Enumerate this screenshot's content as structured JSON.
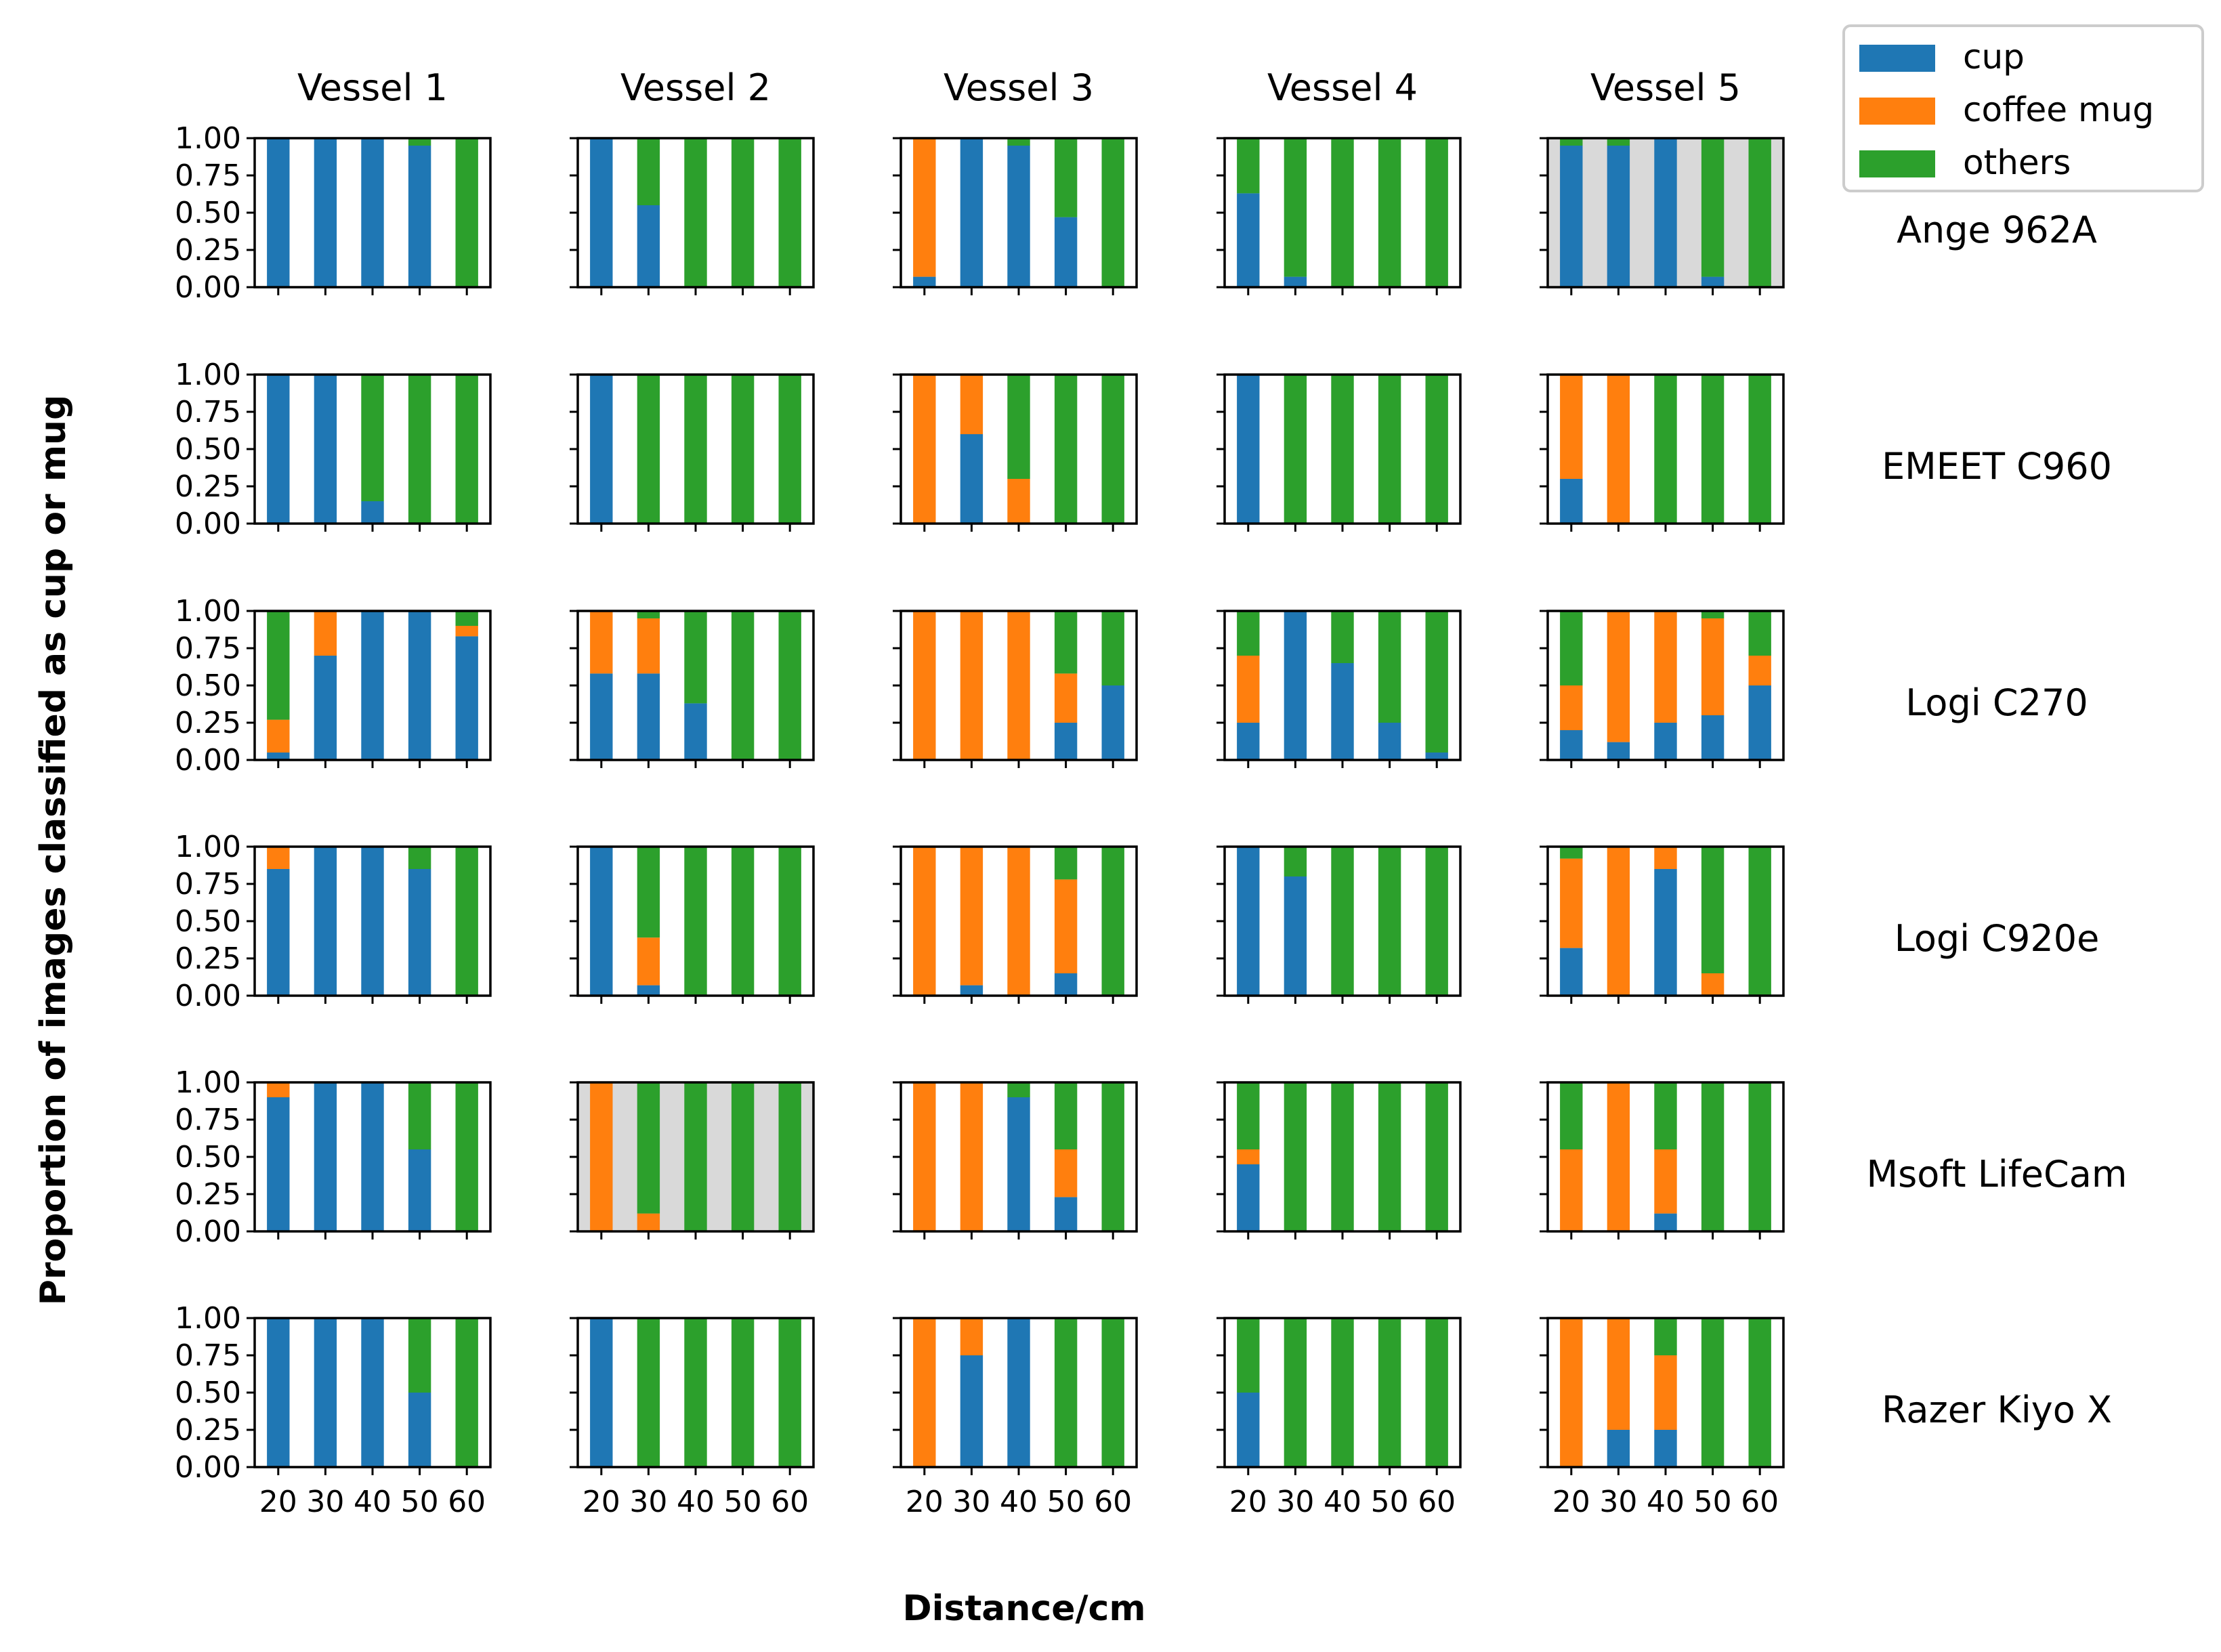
{
  "chart_data": {
    "type": "bar",
    "stacked": true,
    "grid": false,
    "ylabel": "Proportion of images classified as cup or mug",
    "xlabel": "Distance/cm",
    "categories": [
      "20",
      "30",
      "40",
      "50",
      "60"
    ],
    "yticks": [
      "0.00",
      "0.25",
      "0.50",
      "0.75",
      "1.00"
    ],
    "ylim": [
      0,
      1
    ],
    "legend": {
      "placement": "top-right",
      "entries": [
        {
          "name": "cup",
          "color": "#1f77b4"
        },
        {
          "name": "coffee mug",
          "color": "#ff7f0e"
        },
        {
          "name": "others",
          "color": "#2ca02c"
        }
      ]
    },
    "columns": [
      "Vessel 1",
      "Vessel 2",
      "Vessel 3",
      "Vessel 4",
      "Vessel 5"
    ],
    "rows": [
      "Ange 962A",
      "EMEET C960",
      "Logi C270",
      "Logi C920e",
      "Msoft LifeCam",
      "Razer Kiyo X"
    ],
    "highlighted_panels": [
      {
        "row": "Ange 962A",
        "column": "Vessel 5",
        "background": "#d9d9d9"
      },
      {
        "row": "Msoft LifeCam",
        "column": "Vessel 2",
        "background": "#d9d9d9"
      }
    ],
    "panels": [
      [
        {
          "cup": [
            1.0,
            1.0,
            1.0,
            0.95,
            0.0
          ],
          "coffee_mug": [
            0.0,
            0.0,
            0.0,
            0.0,
            0.0
          ],
          "others": [
            0.0,
            0.0,
            0.0,
            0.05,
            1.0
          ]
        },
        {
          "cup": [
            1.0,
            0.55,
            0.0,
            0.0,
            0.0
          ],
          "coffee_mug": [
            0.0,
            0.0,
            0.0,
            0.0,
            0.0
          ],
          "others": [
            0.0,
            0.45,
            1.0,
            1.0,
            1.0
          ]
        },
        {
          "cup": [
            0.07,
            1.0,
            0.95,
            0.47,
            0.0
          ],
          "coffee_mug": [
            0.93,
            0.0,
            0.0,
            0.0,
            0.0
          ],
          "others": [
            0.0,
            0.0,
            0.05,
            0.53,
            1.0
          ]
        },
        {
          "cup": [
            0.63,
            0.07,
            0.0,
            0.0,
            0.0
          ],
          "coffee_mug": [
            0.0,
            0.0,
            0.0,
            0.0,
            0.0
          ],
          "others": [
            0.37,
            0.93,
            1.0,
            1.0,
            1.0
          ]
        },
        {
          "cup": [
            0.95,
            0.95,
            1.0,
            0.07,
            0.0
          ],
          "coffee_mug": [
            0.0,
            0.0,
            0.0,
            0.0,
            0.0
          ],
          "others": [
            0.05,
            0.05,
            0.0,
            0.93,
            1.0
          ]
        }
      ],
      [
        {
          "cup": [
            1.0,
            1.0,
            0.15,
            0.0,
            0.0
          ],
          "coffee_mug": [
            0.0,
            0.0,
            0.0,
            0.0,
            0.0
          ],
          "others": [
            0.0,
            0.0,
            0.85,
            1.0,
            1.0
          ]
        },
        {
          "cup": [
            1.0,
            0.0,
            0.0,
            0.0,
            0.0
          ],
          "coffee_mug": [
            0.0,
            0.0,
            0.0,
            0.0,
            0.0
          ],
          "others": [
            0.0,
            1.0,
            1.0,
            1.0,
            1.0
          ]
        },
        {
          "cup": [
            0.0,
            0.6,
            0.0,
            0.0,
            0.0
          ],
          "coffee_mug": [
            1.0,
            0.4,
            0.3,
            0.0,
            0.0
          ],
          "others": [
            0.0,
            0.0,
            0.7,
            1.0,
            1.0
          ]
        },
        {
          "cup": [
            1.0,
            0.0,
            0.0,
            0.0,
            0.0
          ],
          "coffee_mug": [
            0.0,
            0.0,
            0.0,
            0.0,
            0.0
          ],
          "others": [
            0.0,
            1.0,
            1.0,
            1.0,
            1.0
          ]
        },
        {
          "cup": [
            0.3,
            0.0,
            0.0,
            0.0,
            0.0
          ],
          "coffee_mug": [
            0.7,
            1.0,
            0.0,
            0.0,
            0.0
          ],
          "others": [
            0.0,
            0.0,
            1.0,
            1.0,
            1.0
          ]
        }
      ],
      [
        {
          "cup": [
            0.05,
            0.7,
            1.0,
            1.0,
            0.83
          ],
          "coffee_mug": [
            0.22,
            0.3,
            0.0,
            0.0,
            0.07
          ],
          "others": [
            0.73,
            0.0,
            0.0,
            0.0,
            0.1
          ]
        },
        {
          "cup": [
            0.58,
            0.58,
            0.38,
            0.0,
            0.0
          ],
          "coffee_mug": [
            0.42,
            0.37,
            0.0,
            0.0,
            0.0
          ],
          "others": [
            0.0,
            0.05,
            0.62,
            1.0,
            1.0
          ]
        },
        {
          "cup": [
            0.0,
            0.0,
            0.0,
            0.25,
            0.5
          ],
          "coffee_mug": [
            1.0,
            1.0,
            1.0,
            0.33,
            0.0
          ],
          "others": [
            0.0,
            0.0,
            0.0,
            0.42,
            0.5
          ]
        },
        {
          "cup": [
            0.25,
            1.0,
            0.65,
            0.25,
            0.05
          ],
          "coffee_mug": [
            0.45,
            0.0,
            0.0,
            0.0,
            0.0
          ],
          "others": [
            0.3,
            0.0,
            0.35,
            0.75,
            0.95
          ]
        },
        {
          "cup": [
            0.2,
            0.12,
            0.25,
            0.3,
            0.5
          ],
          "coffee_mug": [
            0.3,
            0.88,
            0.75,
            0.65,
            0.2
          ],
          "others": [
            0.5,
            0.0,
            0.0,
            0.05,
            0.3
          ]
        }
      ],
      [
        {
          "cup": [
            0.85,
            1.0,
            1.0,
            0.85,
            0.0
          ],
          "coffee_mug": [
            0.15,
            0.0,
            0.0,
            0.0,
            0.0
          ],
          "others": [
            0.0,
            0.0,
            0.0,
            0.15,
            1.0
          ]
        },
        {
          "cup": [
            1.0,
            0.07,
            0.0,
            0.0,
            0.0
          ],
          "coffee_mug": [
            0.0,
            0.32,
            0.0,
            0.0,
            0.0
          ],
          "others": [
            0.0,
            0.61,
            1.0,
            1.0,
            1.0
          ]
        },
        {
          "cup": [
            0.0,
            0.07,
            0.0,
            0.15,
            0.0
          ],
          "coffee_mug": [
            1.0,
            0.93,
            1.0,
            0.63,
            0.0
          ],
          "others": [
            0.0,
            0.0,
            0.0,
            0.22,
            1.0
          ]
        },
        {
          "cup": [
            1.0,
            0.8,
            0.0,
            0.0,
            0.0
          ],
          "coffee_mug": [
            0.0,
            0.0,
            0.0,
            0.0,
            0.0
          ],
          "others": [
            0.0,
            0.2,
            1.0,
            1.0,
            1.0
          ]
        },
        {
          "cup": [
            0.32,
            0.0,
            0.85,
            0.0,
            0.0
          ],
          "coffee_mug": [
            0.6,
            1.0,
            0.15,
            0.15,
            0.0
          ],
          "others": [
            0.08,
            0.0,
            0.0,
            0.85,
            1.0
          ]
        }
      ],
      [
        {
          "cup": [
            0.9,
            1.0,
            1.0,
            0.55,
            0.0
          ],
          "coffee_mug": [
            0.1,
            0.0,
            0.0,
            0.0,
            0.0
          ],
          "others": [
            0.0,
            0.0,
            0.0,
            0.45,
            1.0
          ]
        },
        {
          "cup": [
            0.0,
            0.0,
            0.0,
            0.0,
            0.0
          ],
          "coffee_mug": [
            1.0,
            0.12,
            0.0,
            0.0,
            0.0
          ],
          "others": [
            0.0,
            0.88,
            1.0,
            1.0,
            1.0
          ]
        },
        {
          "cup": [
            0.0,
            0.0,
            0.9,
            0.23,
            0.0
          ],
          "coffee_mug": [
            1.0,
            1.0,
            0.0,
            0.32,
            0.0
          ],
          "others": [
            0.0,
            0.0,
            0.1,
            0.45,
            1.0
          ]
        },
        {
          "cup": [
            0.45,
            0.0,
            0.0,
            0.0,
            0.0
          ],
          "coffee_mug": [
            0.1,
            0.0,
            0.0,
            0.0,
            0.0
          ],
          "others": [
            0.45,
            1.0,
            1.0,
            1.0,
            1.0
          ]
        },
        {
          "cup": [
            0.0,
            0.0,
            0.12,
            0.0,
            0.0
          ],
          "coffee_mug": [
            0.55,
            1.0,
            0.43,
            0.0,
            0.0
          ],
          "others": [
            0.45,
            0.0,
            0.45,
            1.0,
            1.0
          ]
        }
      ],
      [
        {
          "cup": [
            1.0,
            1.0,
            1.0,
            0.5,
            0.0
          ],
          "coffee_mug": [
            0.0,
            0.0,
            0.0,
            0.0,
            0.0
          ],
          "others": [
            0.0,
            0.0,
            0.0,
            0.5,
            1.0
          ]
        },
        {
          "cup": [
            1.0,
            0.0,
            0.0,
            0.0,
            0.0
          ],
          "coffee_mug": [
            0.0,
            0.0,
            0.0,
            0.0,
            0.0
          ],
          "others": [
            0.0,
            1.0,
            1.0,
            1.0,
            1.0
          ]
        },
        {
          "cup": [
            0.0,
            0.75,
            1.0,
            0.0,
            0.0
          ],
          "coffee_mug": [
            1.0,
            0.25,
            0.0,
            0.0,
            0.0
          ],
          "others": [
            0.0,
            0.0,
            0.0,
            1.0,
            1.0
          ]
        },
        {
          "cup": [
            0.5,
            0.0,
            0.0,
            0.0,
            0.0
          ],
          "coffee_mug": [
            0.0,
            0.0,
            0.0,
            0.0,
            0.0
          ],
          "others": [
            0.5,
            1.0,
            1.0,
            1.0,
            1.0
          ]
        },
        {
          "cup": [
            0.0,
            0.25,
            0.25,
            0.0,
            0.0
          ],
          "coffee_mug": [
            1.0,
            0.75,
            0.5,
            0.0,
            0.0
          ],
          "others": [
            0.0,
            0.0,
            0.25,
            1.0,
            1.0
          ]
        }
      ]
    ]
  }
}
